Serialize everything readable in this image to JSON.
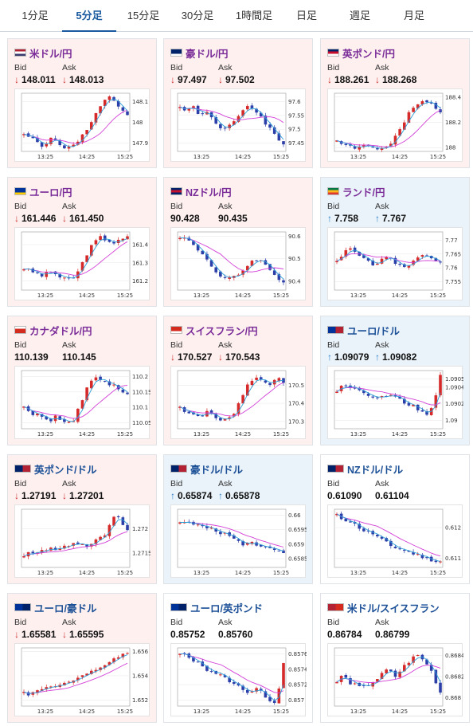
{
  "tabs": [
    "1分足",
    "5分足",
    "15分足",
    "30分足",
    "1時間足",
    "日足",
    "週足",
    "月足"
  ],
  "active_tab": "5分足",
  "labels": {
    "bid": "Bid",
    "ask": "Ask"
  },
  "colors": {
    "accent": "#1a5aa0",
    "up_candle": "#d62a2a",
    "down_candle": "#2c3ea8",
    "ma_short": "#2b9fd8",
    "ma_long": "#d33fd8",
    "card_pink": "#fdf0ef",
    "card_blue": "#eaf3fa"
  },
  "cards": [
    {
      "name": "米ドル/円",
      "flag": "us-flag-icon",
      "name_color": "purple",
      "bg": "pink",
      "bid": "148.011",
      "ask": "148.013",
      "bid_dir": "down",
      "ask_dir": "down",
      "chart_data": {
        "type": "candlestick",
        "x_ticks": [
          "13:25",
          "14:25",
          "15:25"
        ],
        "y_ticks": [
          "148.1",
          "148",
          "147.9"
        ],
        "ylim": [
          147.86,
          148.14
        ],
        "trend": [
          147.94,
          147.93,
          147.92,
          147.9,
          147.89,
          147.9,
          147.92,
          147.91,
          147.89,
          147.88,
          147.88,
          147.89,
          147.91,
          147.94,
          147.97,
          148.0,
          148.05,
          148.08,
          148.11,
          148.12,
          148.1,
          148.08,
          148.05,
          148.03
        ]
      }
    },
    {
      "name": "豪ドル/円",
      "flag": "au-flag-icon",
      "name_color": "purple",
      "bg": "pink",
      "bid": "97.497",
      "ask": "97.502",
      "bid_dir": "down",
      "ask_dir": "down",
      "chart_data": {
        "type": "candlestick",
        "x_ticks": [
          "13:25",
          "14:25",
          "15:25"
        ],
        "y_ticks": [
          "97.6",
          "97.55",
          "97.5",
          "97.45"
        ],
        "ylim": [
          97.42,
          97.63
        ],
        "trend": [
          97.58,
          97.57,
          97.57,
          97.58,
          97.56,
          97.55,
          97.56,
          97.54,
          97.52,
          97.5,
          97.5,
          97.52,
          97.53,
          97.55,
          97.57,
          97.59,
          97.58,
          97.56,
          97.54,
          97.52,
          97.5,
          97.48,
          97.46,
          97.45
        ]
      }
    },
    {
      "name": "英ポンド/円",
      "flag": "gb-flag-icon",
      "name_color": "purple",
      "bg": "pink",
      "bid": "188.261",
      "ask": "188.268",
      "bid_dir": "down",
      "ask_dir": "down",
      "chart_data": {
        "type": "candlestick",
        "x_ticks": [
          "13:25",
          "14:25",
          "15:25"
        ],
        "y_ticks": [
          "188.4",
          "188.2",
          "188"
        ],
        "ylim": [
          187.97,
          188.43
        ],
        "trend": [
          188.06,
          188.04,
          188.03,
          188.01,
          188.0,
          188.01,
          188.02,
          188.01,
          188.0,
          187.99,
          187.99,
          188.0,
          188.03,
          188.08,
          188.14,
          188.2,
          188.27,
          188.31,
          188.34,
          188.36,
          188.37,
          188.36,
          188.32,
          188.28
        ]
      }
    },
    {
      "name": "ユーロ/円",
      "flag": "eu-flag-icon",
      "name_color": "purple",
      "bg": "pink",
      "bid": "161.446",
      "ask": "161.450",
      "bid_dir": "down",
      "ask_dir": "down",
      "chart_data": {
        "type": "candlestick",
        "x_ticks": [
          "13:25",
          "14:25",
          "15:25"
        ],
        "y_ticks": [
          "161.4",
          "161.3",
          "161.2"
        ],
        "ylim": [
          161.15,
          161.47
        ],
        "trend": [
          161.27,
          161.26,
          161.25,
          161.24,
          161.23,
          161.24,
          161.25,
          161.24,
          161.22,
          161.21,
          161.21,
          161.22,
          161.25,
          161.3,
          161.35,
          161.39,
          161.42,
          161.44,
          161.43,
          161.42,
          161.41,
          161.42,
          161.43,
          161.44
        ]
      }
    },
    {
      "name": "NZドル/円",
      "flag": "nz-flag-icon",
      "name_color": "purple",
      "bg": "pink",
      "bid": "90.428",
      "ask": "90.435",
      "bid_dir": "none",
      "ask_dir": "none",
      "chart_data": {
        "type": "candlestick",
        "x_ticks": [
          "13:25",
          "14:25",
          "15:25"
        ],
        "y_ticks": [
          "90.6",
          "90.5",
          "90.4"
        ],
        "ylim": [
          90.36,
          90.62
        ],
        "trend": [
          90.6,
          90.59,
          90.58,
          90.56,
          90.54,
          90.52,
          90.5,
          90.47,
          90.44,
          90.42,
          90.41,
          90.41,
          90.42,
          90.43,
          90.45,
          90.47,
          90.49,
          90.5,
          90.49,
          90.47,
          90.45,
          90.43,
          90.41,
          90.4
        ]
      }
    },
    {
      "name": "ランド/円",
      "flag": "za-flag-icon",
      "name_color": "purple",
      "bg": "blue",
      "bid": "7.758",
      "ask": "7.767",
      "bid_dir": "up",
      "ask_dir": "up",
      "chart_data": {
        "type": "candlestick",
        "x_ticks": [
          "13:25",
          "14:25",
          "15:25"
        ],
        "y_ticks": [
          "7.77",
          "7.765",
          "7.76",
          "7.755"
        ],
        "ylim": [
          7.752,
          7.773
        ],
        "trend": [
          7.762,
          7.764,
          7.766,
          7.767,
          7.766,
          7.765,
          7.764,
          7.762,
          7.761,
          7.762,
          7.763,
          7.764,
          7.763,
          7.762,
          7.761,
          7.76,
          7.761,
          7.763,
          7.764,
          7.765,
          7.764,
          7.763,
          7.762,
          7.762
        ]
      }
    },
    {
      "name": "カナダドル/円",
      "flag": "ca-flag-icon",
      "name_color": "purple",
      "bg": "pink",
      "bid": "110.139",
      "ask": "110.145",
      "bid_dir": "none",
      "ask_dir": "none",
      "chart_data": {
        "type": "candlestick",
        "x_ticks": [
          "13:25",
          "14:25",
          "15:25"
        ],
        "y_ticks": [
          "110.2",
          "110.15",
          "110.1",
          "110.05"
        ],
        "ylim": [
          110.03,
          110.22
        ],
        "trend": [
          110.1,
          110.09,
          110.08,
          110.08,
          110.07,
          110.06,
          110.06,
          110.07,
          110.06,
          110.05,
          110.05,
          110.06,
          110.09,
          110.12,
          110.16,
          110.19,
          110.2,
          110.19,
          110.18,
          110.17,
          110.17,
          110.16,
          110.15,
          110.14
        ]
      }
    },
    {
      "name": "スイスフラン/円",
      "flag": "ch-flag-icon",
      "name_color": "purple",
      "bg": "pink",
      "bid": "170.527",
      "ask": "170.543",
      "bid_dir": "down",
      "ask_dir": "down",
      "chart_data": {
        "type": "candlestick",
        "x_ticks": [
          "13:25",
          "14:25",
          "15:25"
        ],
        "y_ticks": [
          "170.5",
          "170.4",
          "170.3"
        ],
        "ylim": [
          170.26,
          170.58
        ],
        "trend": [
          170.38,
          170.36,
          170.35,
          170.34,
          170.33,
          170.34,
          170.35,
          170.34,
          170.32,
          170.31,
          170.31,
          170.32,
          170.35,
          170.4,
          170.45,
          170.5,
          170.53,
          170.54,
          170.53,
          170.52,
          170.51,
          170.52,
          170.53,
          170.52
        ]
      }
    },
    {
      "name": "ユーロ/ドル",
      "flag": "eu-us-flag-icon",
      "name_color": "navy",
      "bg": "blue",
      "bid": "1.09079",
      "ask": "1.09082",
      "bid_dir": "up",
      "ask_dir": "up",
      "chart_data": {
        "type": "candlestick",
        "x_ticks": [
          "13:25",
          "14:25",
          "15:25"
        ],
        "y_ticks": [
          "1.0905",
          "1.0904",
          "1.0902",
          "1.09"
        ],
        "ylim": [
          1.0899,
          1.0906
        ],
        "trend": [
          1.09035,
          1.0904,
          1.09042,
          1.0904,
          1.09038,
          1.09036,
          1.09032,
          1.0903,
          1.09028,
          1.09026,
          1.09028,
          1.0903,
          1.09032,
          1.0903,
          1.09026,
          1.09022,
          1.0902,
          1.09018,
          1.09014,
          1.0901,
          1.09008,
          1.09015,
          1.0903,
          1.09055
        ]
      }
    },
    {
      "name": "英ポンド/ドル",
      "flag": "gb-us-flag-icon",
      "name_color": "navy",
      "bg": "pink",
      "bid": "1.27191",
      "ask": "1.27201",
      "bid_dir": "down",
      "ask_dir": "down",
      "chart_data": {
        "type": "candlestick",
        "x_ticks": [
          "13:25",
          "14:25",
          "15:25"
        ],
        "y_ticks": [
          "1.272",
          "1.2715"
        ],
        "ylim": [
          1.2712,
          1.2724
        ],
        "trend": [
          1.27145,
          1.2715,
          1.27148,
          1.27152,
          1.27155,
          1.27158,
          1.2716,
          1.27158,
          1.2716,
          1.27165,
          1.27162,
          1.27168,
          1.2717,
          1.27165,
          1.2716,
          1.27168,
          1.27175,
          1.2718,
          1.27185,
          1.2721,
          1.27225,
          1.2722,
          1.2721,
          1.27195
        ]
      }
    },
    {
      "name": "豪ドル/ドル",
      "flag": "au-us-flag-icon",
      "name_color": "navy",
      "bg": "blue",
      "bid": "0.65874",
      "ask": "0.65878",
      "bid_dir": "up",
      "ask_dir": "up",
      "chart_data": {
        "type": "candlestick",
        "x_ticks": [
          "13:25",
          "14:25",
          "15:25"
        ],
        "y_ticks": [
          "0.66",
          "0.6595",
          "0.659",
          "0.6585"
        ],
        "ylim": [
          0.6582,
          0.6602
        ],
        "trend": [
          0.6598,
          0.65975,
          0.6597,
          0.6597,
          0.65965,
          0.6596,
          0.65955,
          0.6595,
          0.65945,
          0.6594,
          0.65935,
          0.6593,
          0.6592,
          0.6591,
          0.659,
          0.6591,
          0.65905,
          0.659,
          0.65895,
          0.6589,
          0.65885,
          0.6588,
          0.65875,
          0.65874
        ]
      }
    },
    {
      "name": "NZドル/ドル",
      "flag": "nz-us-flag-icon",
      "name_color": "navy",
      "bg": "plain",
      "bid": "0.61090",
      "ask": "0.61104",
      "bid_dir": "none",
      "ask_dir": "none",
      "chart_data": {
        "type": "candlestick",
        "x_ticks": [
          "13:25",
          "14:25",
          "15:25"
        ],
        "y_ticks": [
          "0.612",
          "0.611"
        ],
        "ylim": [
          0.6107,
          0.6126
        ],
        "trend": [
          0.6124,
          0.6123,
          0.61225,
          0.6122,
          0.6121,
          0.612,
          0.6119,
          0.61185,
          0.6118,
          0.6117,
          0.6116,
          0.6115,
          0.6114,
          0.61135,
          0.6113,
          0.61125,
          0.6112,
          0.61115,
          0.6111,
          0.61105,
          0.611,
          0.61095,
          0.6109,
          0.6109
        ]
      }
    },
    {
      "name": "ユーロ/豪ドル",
      "flag": "eu-au-flag-icon",
      "name_color": "navy",
      "bg": "pink",
      "bid": "1.65581",
      "ask": "1.65595",
      "bid_dir": "down",
      "ask_dir": "down",
      "chart_data": {
        "type": "candlestick",
        "x_ticks": [
          "13:25",
          "14:25",
          "15:25"
        ],
        "y_ticks": [
          "1.656",
          "1.654",
          "1.652"
        ],
        "ylim": [
          1.6515,
          1.6563
        ],
        "trend": [
          1.6526,
          1.6525,
          1.6527,
          1.6529,
          1.6528,
          1.653,
          1.6532,
          1.6531,
          1.6533,
          1.6535,
          1.6534,
          1.6536,
          1.6538,
          1.6539,
          1.6541,
          1.6543,
          1.6545,
          1.6547,
          1.6549,
          1.6551,
          1.6553,
          1.6555,
          1.6557,
          1.6558
        ]
      }
    },
    {
      "name": "ユーロ/英ポンド",
      "flag": "eu-gb-flag-icon",
      "name_color": "navy",
      "bg": "plain",
      "bid": "0.85752",
      "ask": "0.85760",
      "bid_dir": "none",
      "ask_dir": "none",
      "chart_data": {
        "type": "candlestick",
        "x_ticks": [
          "13:25",
          "14:25",
          "15:25"
        ],
        "y_ticks": [
          "0.8576",
          "0.8574",
          "0.8572",
          "0.857"
        ],
        "ylim": [
          0.85692,
          0.85768
        ],
        "trend": [
          0.8576,
          0.85758,
          0.85755,
          0.85752,
          0.85748,
          0.85745,
          0.8574,
          0.85738,
          0.85735,
          0.85732,
          0.85728,
          0.85725,
          0.8572,
          0.85718,
          0.85715,
          0.8571,
          0.85712,
          0.85715,
          0.8571,
          0.85705,
          0.857,
          0.85698,
          0.85715,
          0.8575
        ]
      }
    },
    {
      "name": "米ドル/スイスフラン",
      "flag": "us-ch-flag-icon",
      "name_color": "navy",
      "bg": "plain",
      "bid": "0.86784",
      "ask": "0.86799",
      "bid_dir": "none",
      "ask_dir": "none",
      "chart_data": {
        "type": "candlestick",
        "x_ticks": [
          "13:25",
          "14:25",
          "15:25"
        ],
        "y_ticks": [
          "0.8684",
          "0.8682",
          "0.868"
        ],
        "ylim": [
          0.86792,
          0.86847
        ],
        "trend": [
          0.86815,
          0.8682,
          0.86818,
          0.86814,
          0.86812,
          0.8681,
          0.8681,
          0.86812,
          0.86815,
          0.86818,
          0.86822,
          0.86826,
          0.86824,
          0.8682,
          0.86825,
          0.8683,
          0.86834,
          0.86838,
          0.8684,
          0.86836,
          0.86832,
          0.86825,
          0.86815,
          0.86805
        ]
      }
    }
  ]
}
